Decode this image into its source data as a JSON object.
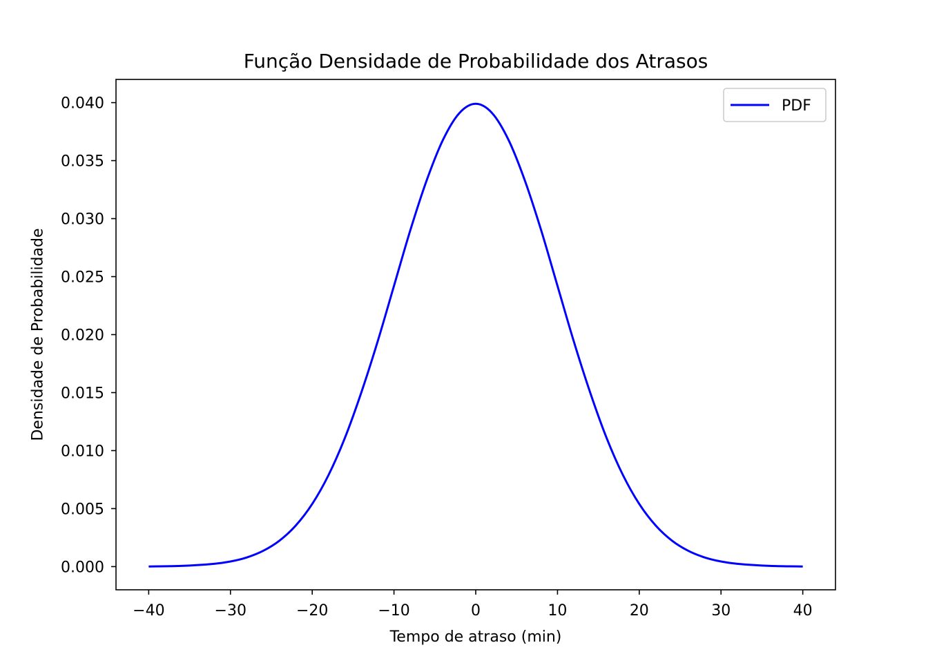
{
  "chart_data": {
    "type": "line",
    "title": "Função Densidade de Probabilidade dos Atrasos",
    "xlabel": "Tempo de atraso (min)",
    "ylabel": "Densidade de Probabilidade",
    "xlim": [
      -44,
      44
    ],
    "ylim": [
      -0.002,
      0.042
    ],
    "x_ticks": [
      -40,
      -30,
      -20,
      -10,
      0,
      10,
      20,
      30,
      40
    ],
    "x_tick_labels": [
      "−40",
      "−30",
      "−20",
      "−10",
      "0",
      "10",
      "20",
      "30",
      "40"
    ],
    "y_ticks": [
      0.0,
      0.005,
      0.01,
      0.015,
      0.02,
      0.025,
      0.03,
      0.035,
      0.04
    ],
    "y_tick_labels": [
      "0.000",
      "0.005",
      "0.010",
      "0.015",
      "0.020",
      "0.025",
      "0.030",
      "0.035",
      "0.040"
    ],
    "grid": false,
    "legend": {
      "placement": "upper right",
      "entries": [
        "PDF"
      ]
    },
    "series": [
      {
        "name": "PDF",
        "color": "#0000ff",
        "x": [
          -40,
          -36,
          -32,
          -30,
          -28,
          -26,
          -24,
          -22,
          -20,
          -18,
          -16,
          -14,
          -12,
          -10,
          -8,
          -6,
          -4,
          -2,
          0,
          2,
          4,
          6,
          8,
          10,
          12,
          14,
          16,
          18,
          20,
          22,
          24,
          26,
          28,
          30,
          32,
          36,
          40
        ],
        "y": [
          1e-05,
          6e-05,
          0.00024,
          0.00044,
          0.00079,
          0.00136,
          0.00224,
          0.00355,
          0.0054,
          0.0079,
          0.0111,
          0.015,
          0.0194,
          0.0242,
          0.029,
          0.0333,
          0.0368,
          0.0391,
          0.0399,
          0.0391,
          0.0368,
          0.0333,
          0.029,
          0.0242,
          0.0194,
          0.015,
          0.0111,
          0.0079,
          0.0054,
          0.00355,
          0.00224,
          0.00136,
          0.00079,
          0.00044,
          0.00024,
          6e-05,
          1e-05
        ]
      }
    ]
  }
}
